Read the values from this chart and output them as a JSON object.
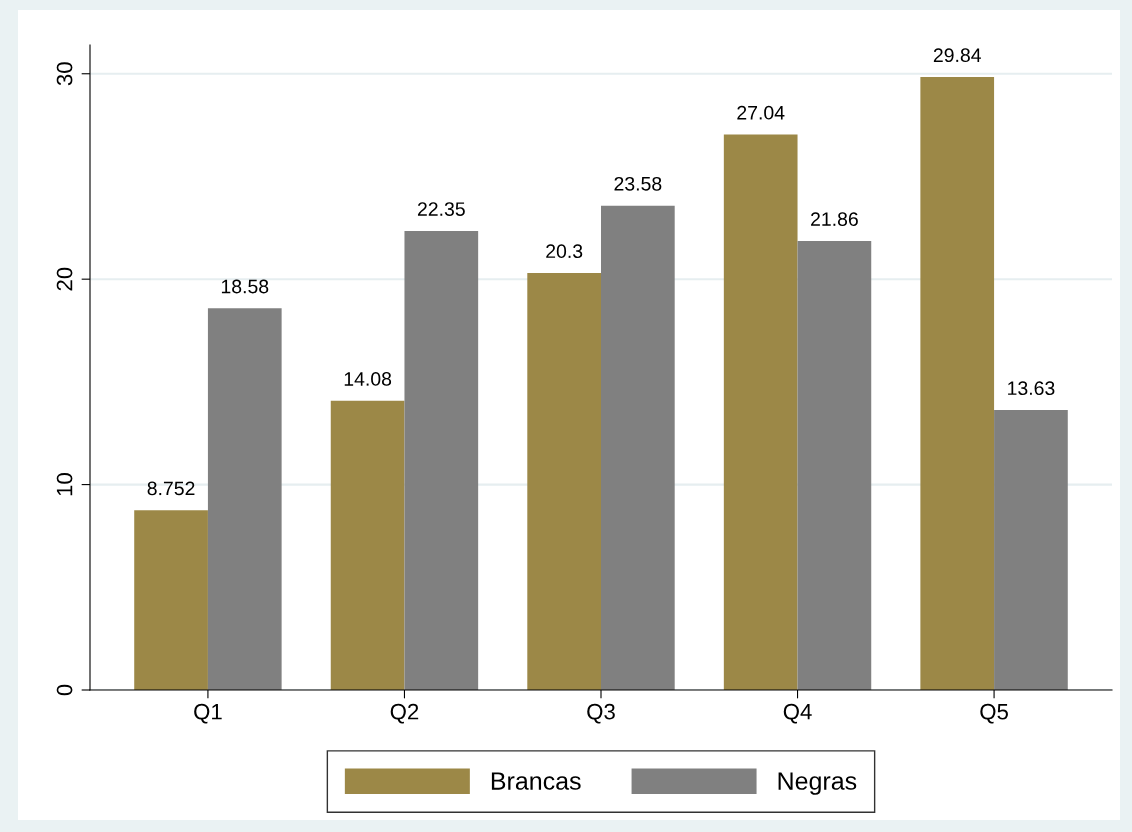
{
  "chart_data": {
    "type": "bar",
    "categories": [
      "Q1",
      "Q2",
      "Q3",
      "Q4",
      "Q5"
    ],
    "series": [
      {
        "name": "Brancas",
        "color": "#9c8847",
        "values": [
          8.752,
          14.08,
          20.3,
          27.04,
          29.84
        ]
      },
      {
        "name": "Negras",
        "color": "#808080",
        "values": [
          18.58,
          22.35,
          23.58,
          21.86,
          13.63
        ]
      }
    ],
    "ylim": [
      0,
      31.4
    ],
    "yticks": [
      0,
      10,
      20,
      30
    ],
    "grid": "y",
    "legend": "bottom",
    "data_labels": true
  }
}
